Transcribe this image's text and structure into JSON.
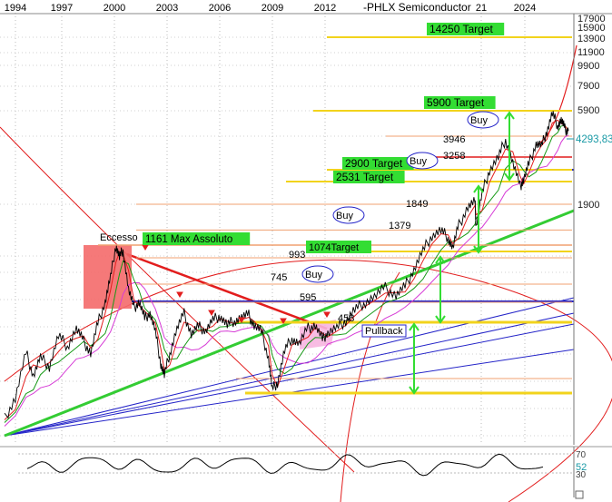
{
  "chart_data": {
    "type": "line",
    "title": "-PHLX Semiconductor",
    "x_ticks": [
      "1994",
      "1997",
      "2000",
      "2003",
      "2006",
      "2009",
      "2012",
      "21",
      "2024"
    ],
    "y_ticks": [
      "17900",
      "15900",
      "13900",
      "11900",
      "9900",
      "7900",
      "5900",
      "1900"
    ],
    "last_price": "4293,83",
    "price_path": [
      [
        1994.0,
        120
      ],
      [
        1994.6,
        160
      ],
      [
        1995.2,
        300
      ],
      [
        1995.6,
        220
      ],
      [
        1996.0,
        280
      ],
      [
        1996.5,
        250
      ],
      [
        1997.0,
        380
      ],
      [
        1997.5,
        330
      ],
      [
        1998.0,
        420
      ],
      [
        1998.4,
        350
      ],
      [
        1998.8,
        300
      ],
      [
        1999.2,
        450
      ],
      [
        1999.6,
        600
      ],
      [
        1999.9,
        800
      ],
      [
        2000.2,
        1161
      ],
      [
        2000.4,
        1000
      ],
      [
        2000.6,
        1100
      ],
      [
        2000.9,
        700
      ],
      [
        2001.2,
        550
      ],
      [
        2001.5,
        600
      ],
      [
        2001.8,
        480
      ],
      [
        2002.1,
        520
      ],
      [
        2002.4,
        400
      ],
      [
        2002.7,
        260
      ],
      [
        2002.9,
        220
      ],
      [
        2003.2,
        300
      ],
      [
        2003.6,
        420
      ],
      [
        2004.0,
        510
      ],
      [
        2004.4,
        390
      ],
      [
        2004.8,
        430
      ],
      [
        2005.2,
        410
      ],
      [
        2005.6,
        470
      ],
      [
        2006.0,
        500
      ],
      [
        2006.4,
        440
      ],
      [
        2006.8,
        470
      ],
      [
        2007.2,
        490
      ],
      [
        2007.6,
        500
      ],
      [
        2007.9,
        440
      ],
      [
        2008.3,
        400
      ],
      [
        2008.7,
        280
      ],
      [
        2008.9,
        180
      ],
      [
        2009.2,
        200
      ],
      [
        2009.6,
        310
      ],
      [
        2010.0,
        370
      ],
      [
        2010.4,
        340
      ],
      [
        2010.9,
        420
      ],
      [
        2011.3,
        440
      ],
      [
        2011.7,
        360
      ],
      [
        2012.0,
        400
      ],
      [
        2012.5,
        420
      ],
      [
        2013.0,
        470
      ],
      [
        2013.5,
        540
      ],
      [
        2014.0,
        590
      ],
      [
        2014.6,
        640
      ],
      [
        2015.2,
        710
      ],
      [
        2015.8,
        650
      ],
      [
        2016.3,
        720
      ],
      [
        2016.8,
        880
      ],
      [
        2017.3,
        1080
      ],
      [
        2017.8,
        1300
      ],
      [
        2018.3,
        1370
      ],
      [
        2018.7,
        1270
      ],
      [
        2018.95,
        1120
      ],
      [
        2019.3,
        1450
      ],
      [
        2019.8,
        1800
      ],
      [
        2020.2,
        1900
      ],
      [
        2020.25,
        1450
      ],
      [
        2020.6,
        2150
      ],
      [
        2021.0,
        2900
      ],
      [
        2021.5,
        3250
      ],
      [
        2021.9,
        3850
      ],
      [
        2022.3,
        3100
      ],
      [
        2022.7,
        2350
      ],
      [
        2022.9,
        2600
      ],
      [
        2023.2,
        3050
      ],
      [
        2023.6,
        3700
      ],
      [
        2023.9,
        3600
      ],
      [
        2024.2,
        4300
      ],
      [
        2024.5,
        5650
      ],
      [
        2024.8,
        4700
      ],
      [
        2025.0,
        5100
      ],
      [
        2025.2,
        4400
      ],
      [
        2025.4,
        4294
      ]
    ],
    "levels": [
      {
        "value": 14250,
        "label": "14250 Target"
      },
      {
        "value": 5900,
        "label": "5900 Target"
      },
      {
        "value": 3946,
        "label": "3946"
      },
      {
        "value": 3258,
        "label": "3258"
      },
      {
        "value": 2900,
        "label": "2900 Target"
      },
      {
        "value": 2531,
        "label": "2531 Target"
      },
      {
        "value": 1849,
        "label": "1849"
      },
      {
        "value": 1379,
        "label": "1379"
      },
      {
        "value": 1161,
        "label": "1161 Max Assoluto"
      },
      {
        "value": 1074,
        "label": "1074Target"
      },
      {
        "value": 993,
        "label": "993"
      },
      {
        "value": 745,
        "label": "745"
      },
      {
        "value": 595,
        "label": "595"
      },
      {
        "value": 458,
        "label": "458"
      }
    ],
    "annotations": [
      "Eccesso",
      "Buy",
      "Buy",
      "Buy",
      "Buy",
      "Pullback"
    ],
    "rsi": {
      "value": "52",
      "upper": "70",
      "lower": "30"
    }
  }
}
